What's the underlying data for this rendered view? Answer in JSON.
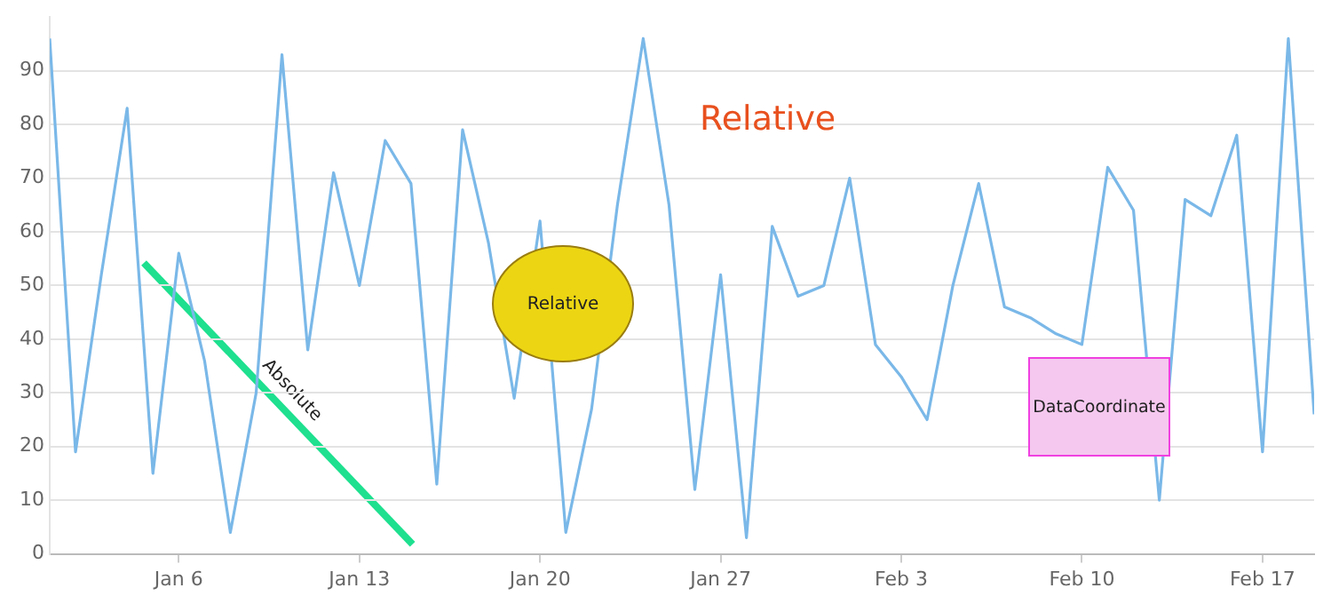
{
  "chart_data": {
    "type": "line",
    "x": [
      "--01-01",
      "--01-02",
      "--01-03",
      "--01-04",
      "--01-05",
      "--01-06",
      "--01-07",
      "--01-08",
      "--01-09",
      "--01-10",
      "--01-11",
      "--01-12",
      "--01-13",
      "--01-14",
      "--01-15",
      "--01-16",
      "--01-17",
      "--01-18",
      "--01-19",
      "--01-20",
      "--01-21",
      "--01-22",
      "--01-23",
      "--01-24",
      "--01-25",
      "--01-26",
      "--01-27",
      "--01-28",
      "--01-29",
      "--01-30",
      "--01-31",
      "--02-01",
      "--02-02",
      "--02-03",
      "--02-04",
      "--02-05",
      "--02-06",
      "--02-07",
      "--02-08",
      "--02-09",
      "--02-10",
      "--02-11",
      "--02-12",
      "--02-13",
      "--02-14",
      "--02-15",
      "--02-16",
      "--02-17",
      "--02-18",
      "--02-19"
    ],
    "series": [
      {
        "color": "#7ab8e8",
        "values": [
          96,
          19,
          52,
          83,
          15,
          56,
          36,
          4,
          30,
          93,
          38,
          71,
          50,
          77,
          69,
          13,
          79,
          58,
          29,
          62,
          4,
          27,
          65,
          96,
          65,
          12,
          52,
          3,
          61,
          48,
          50,
          70,
          39,
          33,
          25,
          50,
          69,
          46,
          44,
          41,
          39,
          72,
          64,
          10,
          66,
          63,
          78,
          19,
          96,
          26
        ]
      }
    ],
    "xlim": [
      "--01-01",
      "--02-19"
    ],
    "xticks": [
      {
        "value": "--01-06",
        "label": "Jan 6"
      },
      {
        "value": "--01-13",
        "label": "Jan 13"
      },
      {
        "value": "--01-20",
        "label": "Jan 20"
      },
      {
        "value": "--01-27",
        "label": "Jan 27"
      },
      {
        "value": "--02-03",
        "label": "Feb 3"
      },
      {
        "value": "--02-10",
        "label": "Feb 10"
      },
      {
        "value": "--02-17",
        "label": "Feb 17"
      }
    ],
    "ylim": [
      0,
      100
    ],
    "yticks": [
      0,
      10,
      20,
      30,
      40,
      50,
      60,
      70,
      80,
      90
    ],
    "grid": "y",
    "legend": false,
    "marker": "none",
    "annotations": [
      "Relative",
      "Relative",
      "Absolute",
      "DataCoordinate"
    ]
  }
}
